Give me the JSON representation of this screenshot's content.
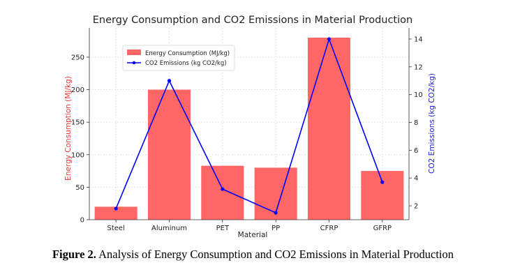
{
  "chart_data": {
    "type": "bar",
    "title": "Energy Consumption and CO2 Emissions in Material Production",
    "xlabel": "Material",
    "ylabel": "Energy Consumption (MJ/kg)",
    "y2label": "CO2 Emissions (kg CO2/kg)",
    "categories": [
      "Steel",
      "Aluminum",
      "PET",
      "PP",
      "CFRP",
      "GFRP"
    ],
    "ylim": [
      0,
      295
    ],
    "y2lim": [
      1,
      14.8
    ],
    "yticks": [
      0,
      50,
      100,
      150,
      200,
      250
    ],
    "y2ticks": [
      2,
      4,
      6,
      8,
      10,
      12,
      14
    ],
    "grid": true,
    "legend_position": "top-left",
    "series": [
      {
        "name": "Energy Consumption (MJ/kg)",
        "type": "bar",
        "axis": "left",
        "color": "#ff6666",
        "values": [
          20,
          200,
          83,
          80,
          280,
          75
        ]
      },
      {
        "name": "CO2 Emissions (kg CO2/kg)",
        "type": "line",
        "axis": "right",
        "color": "#0000ff",
        "values": [
          1.8,
          11.0,
          3.2,
          1.5,
          14.0,
          3.7
        ]
      }
    ]
  },
  "caption": {
    "label": "Figure 2.",
    "text": " Analysis of Energy Consumption and CO2 Emissions in Material Production"
  }
}
